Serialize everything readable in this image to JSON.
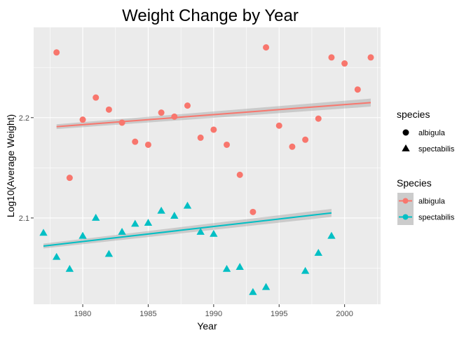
{
  "chart_data": {
    "type": "scatter",
    "title": "Weight Change by Year",
    "xlabel": "Year",
    "ylabel": "Log10(Average Weight)",
    "xlim": [
      1976.25,
      2002.75
    ],
    "ylim": [
      2.014,
      2.29
    ],
    "x_ticks": [
      1980,
      1985,
      1990,
      1995,
      2000
    ],
    "y_ticks": [
      2.1,
      2.2
    ],
    "grid": true,
    "legend_placement": "right",
    "series": [
      {
        "name": "albigula",
        "color": "#F8766D",
        "marker": "circle",
        "x": [
          1978,
          1979,
          1980,
          1981,
          1982,
          1983,
          1984,
          1985,
          1986,
          1987,
          1988,
          1989,
          1990,
          1991,
          1992,
          1993,
          1994,
          1995,
          1996,
          1997,
          1998,
          1999,
          2000,
          2001,
          2002
        ],
        "y": [
          2.265,
          2.14,
          2.198,
          2.22,
          2.208,
          2.195,
          2.176,
          2.173,
          2.205,
          2.201,
          2.212,
          2.18,
          2.188,
          2.173,
          2.143,
          2.106,
          2.27,
          2.192,
          2.171,
          2.178,
          2.199,
          2.26,
          2.254,
          2.228,
          2.26
        ],
        "fit": {
          "x": [
            1978,
            2002
          ],
          "y": [
            2.191,
            2.215
          ],
          "ci": 0.004
        }
      },
      {
        "name": "spectabilis",
        "color": "#00BFC4",
        "marker": "triangle",
        "x": [
          1977,
          1978,
          1979,
          1980,
          1981,
          1982,
          1983,
          1984,
          1985,
          1986,
          1987,
          1988,
          1989,
          1990,
          1991,
          1992,
          1993,
          1994,
          1997,
          1998,
          1999
        ],
        "y": [
          2.085,
          2.061,
          2.049,
          2.082,
          2.1,
          2.064,
          2.086,
          2.094,
          2.095,
          2.107,
          2.102,
          2.112,
          2.086,
          2.084,
          2.049,
          2.051,
          2.026,
          2.031,
          2.047,
          2.065,
          2.082
        ],
        "fit": {
          "x": [
            1977,
            1999
          ],
          "y": [
            2.072,
            2.105
          ],
          "ci": 0.004
        }
      }
    ],
    "legends": [
      {
        "title": "species",
        "entries": [
          "albigula",
          "spectabilis"
        ]
      },
      {
        "title": "Species",
        "entries": [
          "albigula",
          "spectabilis"
        ]
      }
    ]
  }
}
